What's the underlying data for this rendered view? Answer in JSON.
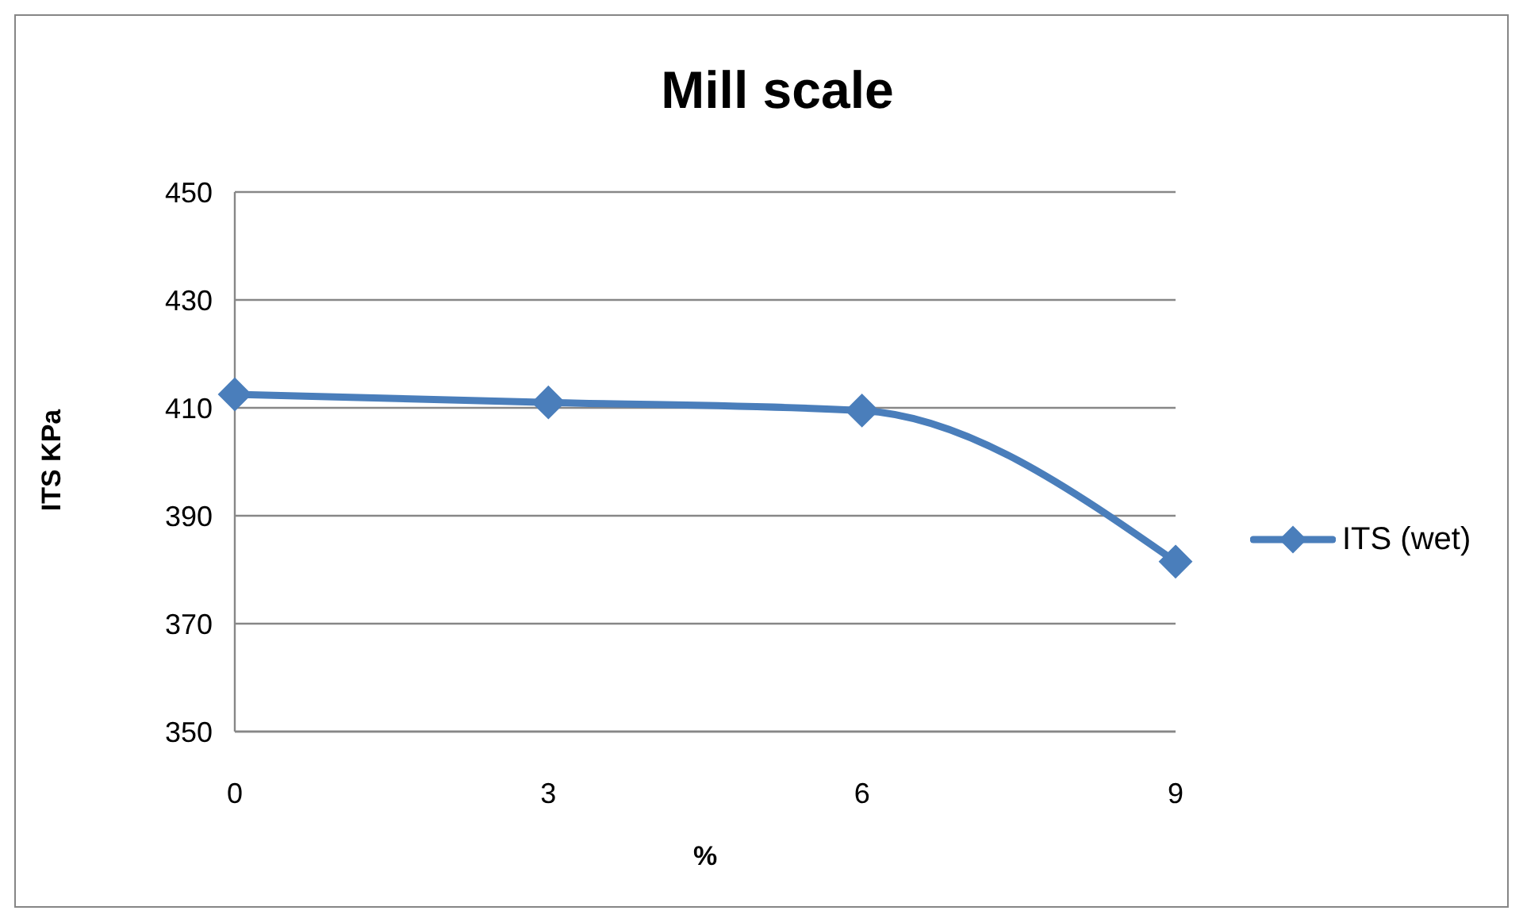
{
  "chart_data": {
    "type": "line",
    "title": "Mill scale",
    "xlabel": "%",
    "ylabel": "ITS KPa",
    "categories": [
      "0",
      "3",
      "6",
      "9"
    ],
    "series": [
      {
        "name": "ITS (wet)",
        "color": "#4a7ebb",
        "values": [
          412.5,
          411,
          409.5,
          381.5
        ]
      }
    ],
    "ylim": [
      350,
      450
    ],
    "yticks": [
      350,
      370,
      390,
      410,
      430,
      450
    ],
    "grid": "y",
    "legend": "right",
    "marker": "diamond",
    "line_style": "solid"
  }
}
